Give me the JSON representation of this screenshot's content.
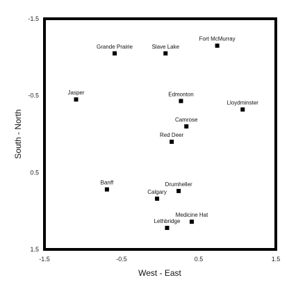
{
  "chart_data": {
    "type": "scatter",
    "title": "",
    "xlabel": "West - East",
    "ylabel": "South - North",
    "xlim": [
      -1.5,
      1.5
    ],
    "ylim": [
      -1.5,
      1.5
    ],
    "y_inverted": true,
    "x_ticks": [
      "-1.5",
      "-0.5",
      "0.5",
      "1.5"
    ],
    "y_ticks": [
      "-1.5",
      "-0.5",
      "0.5",
      "1.5"
    ],
    "x_tick_values": [
      -1.5,
      -0.5,
      0.5,
      1.5
    ],
    "y_tick_values": [
      -1.5,
      -0.5,
      0.5,
      1.5
    ],
    "grid": false,
    "marker": "square",
    "color": "#000000",
    "points": [
      {
        "label": "Fort McMurray",
        "x": 0.74,
        "y": -1.15
      },
      {
        "label": "Grande Prairie",
        "x": -0.59,
        "y": -1.05
      },
      {
        "label": "Slave Lake",
        "x": 0.07,
        "y": -1.05
      },
      {
        "label": "Jasper",
        "x": -1.09,
        "y": -0.45
      },
      {
        "label": "Edmonton",
        "x": 0.27,
        "y": -0.43
      },
      {
        "label": "Lloydminster",
        "x": 1.07,
        "y": -0.32
      },
      {
        "label": "Camrose",
        "x": 0.34,
        "y": -0.1
      },
      {
        "label": "Red Deer",
        "x": 0.15,
        "y": 0.1
      },
      {
        "label": "Banff",
        "x": -0.69,
        "y": 0.72
      },
      {
        "label": "Drumheller",
        "x": 0.24,
        "y": 0.74
      },
      {
        "label": "Calgary",
        "x": -0.04,
        "y": 0.84
      },
      {
        "label": "Medicine Hat",
        "x": 0.41,
        "y": 1.14
      },
      {
        "label": "Lethbridge",
        "x": 0.09,
        "y": 1.22
      }
    ]
  }
}
